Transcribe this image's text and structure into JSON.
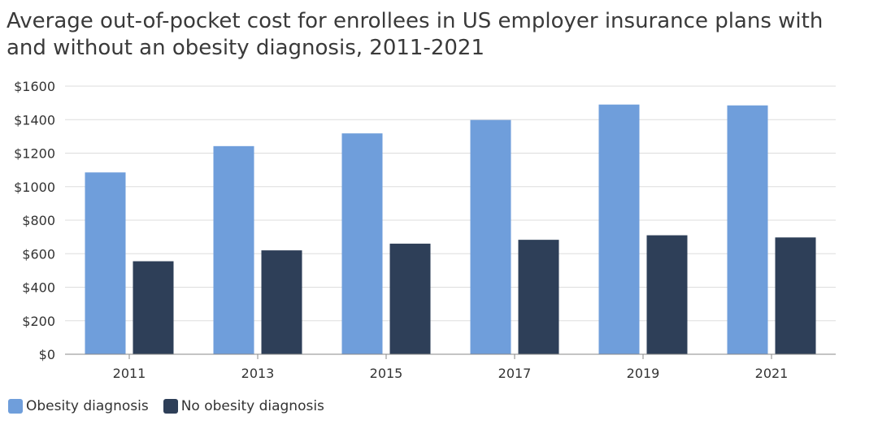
{
  "chart_data": {
    "type": "bar",
    "title": "Average out-of-pocket cost for enrollees in US employer insurance plans with and without an obesity diagnosis, 2011-2021",
    "xlabel": "",
    "ylabel": "",
    "categories": [
      "2011",
      "2013",
      "2015",
      "2017",
      "2019",
      "2021"
    ],
    "series": [
      {
        "name": "Obesity diagnosis",
        "color": "#6f9edb",
        "values": [
          1085,
          1242,
          1318,
          1398,
          1490,
          1485
        ]
      },
      {
        "name": "No obesity diagnosis",
        "color": "#2e3f58",
        "values": [
          555,
          620,
          660,
          683,
          710,
          697
        ]
      }
    ],
    "ylim": [
      0,
      1600
    ],
    "yticks": [
      "$0",
      "$200",
      "$400",
      "$600",
      "$800",
      "$1000",
      "$1200",
      "$1400",
      "$1600"
    ],
    "grid": true,
    "legend_position": "bottom-left"
  }
}
